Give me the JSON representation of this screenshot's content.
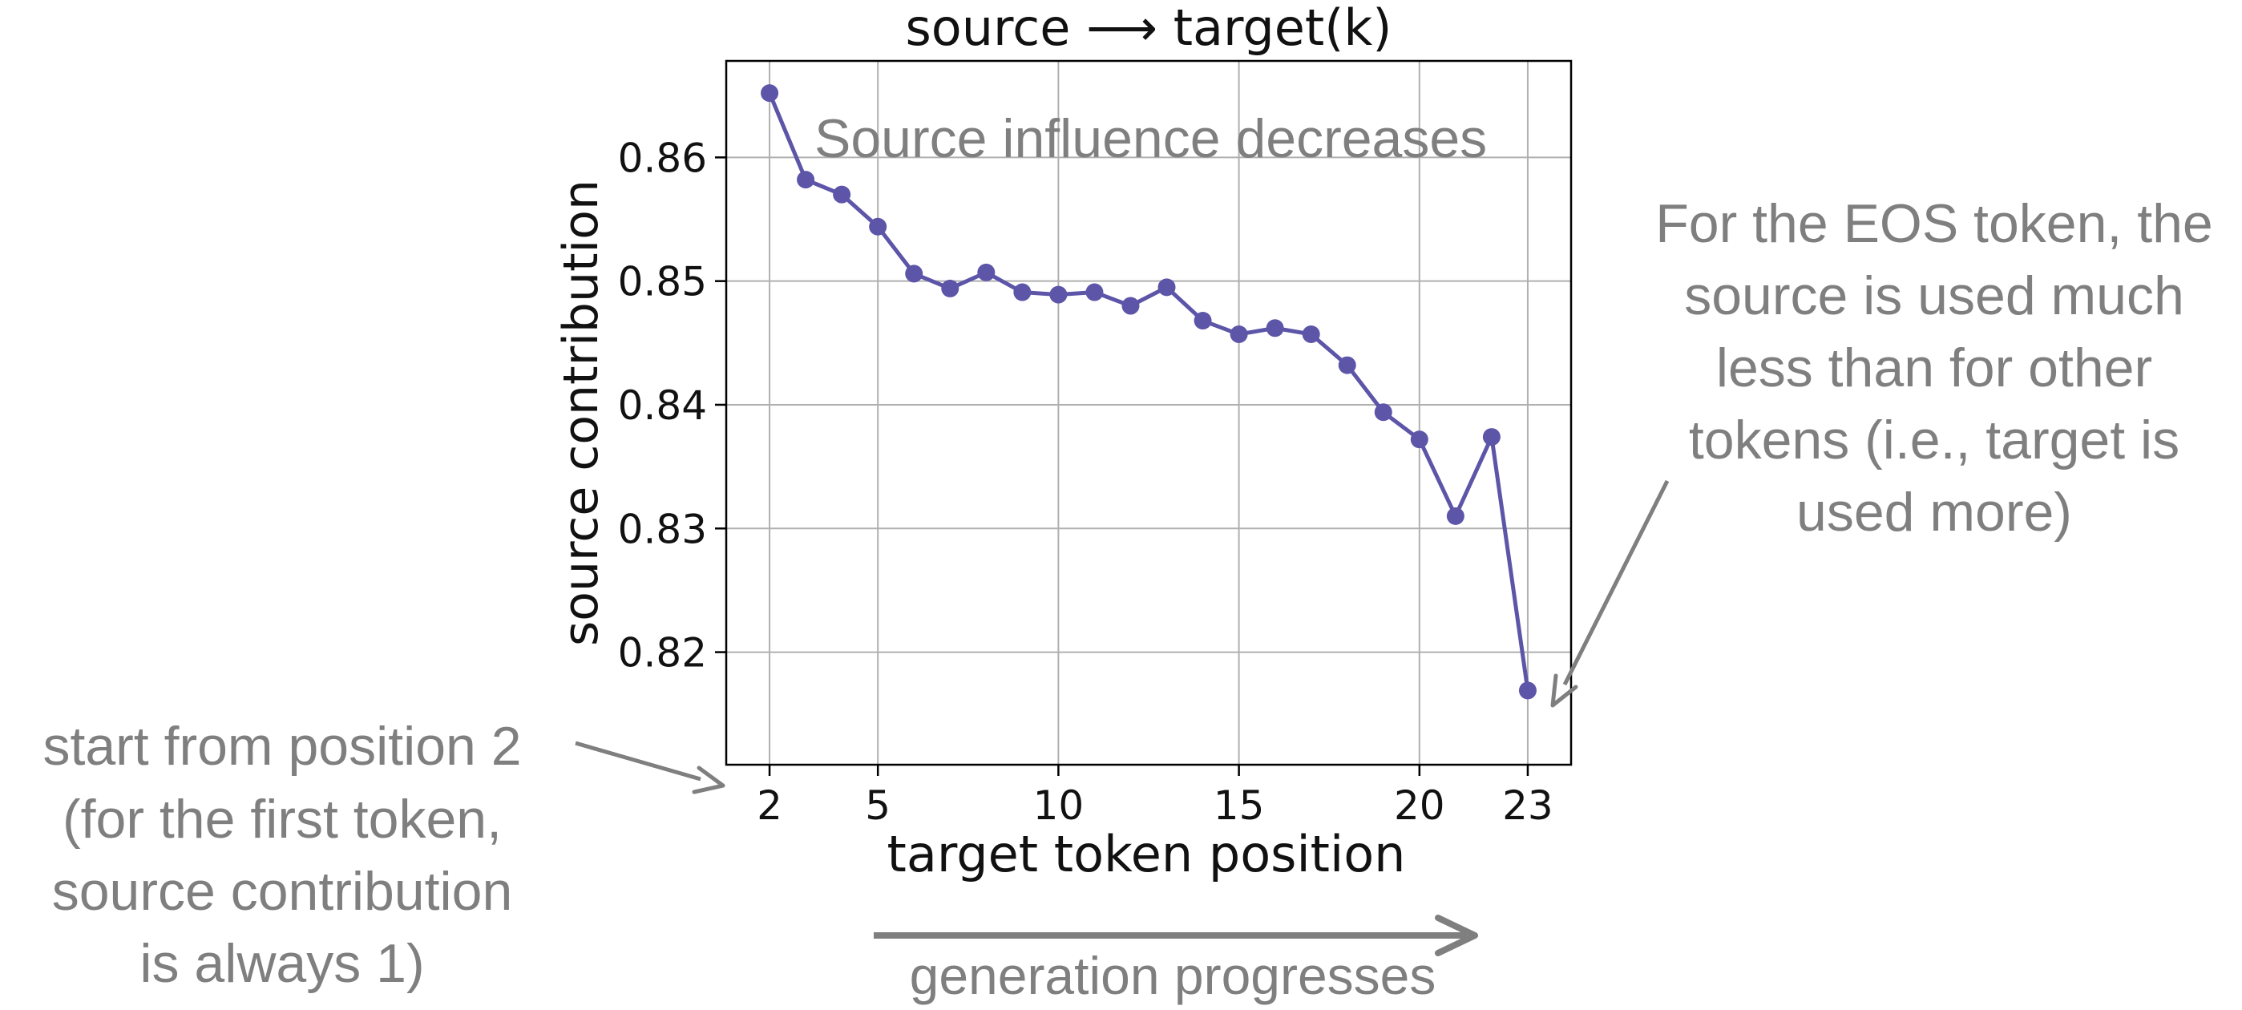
{
  "chart_data": {
    "type": "line",
    "title": "source ⟶ target(k)",
    "xlabel": "target token position",
    "ylabel": "source contribution",
    "x": [
      2,
      3,
      4,
      5,
      6,
      7,
      8,
      9,
      10,
      11,
      12,
      13,
      14,
      15,
      16,
      17,
      18,
      19,
      20,
      21,
      22,
      23
    ],
    "series": [
      {
        "values": [
          0.8652,
          0.8582,
          0.857,
          0.8544,
          0.8506,
          0.8494,
          0.8507,
          0.8491,
          0.8489,
          0.8491,
          0.848,
          0.8495,
          0.8468,
          0.8457,
          0.8462,
          0.8457,
          0.8432,
          0.8394,
          0.8372,
          0.831,
          0.8374,
          0.8169
        ],
        "color": "#5c55a8"
      }
    ],
    "xticks": [
      "2",
      "5",
      "10",
      "15",
      "20",
      "23"
    ],
    "yticks": [
      "0.82",
      "0.83",
      "0.84",
      "0.85",
      "0.86"
    ],
    "xlim": [
      0.8,
      24.2
    ],
    "ylim": [
      0.8109,
      0.8678
    ],
    "grid": true,
    "legend": "none"
  },
  "annotations": {
    "inside": "Source influence decreases",
    "eos_lines": [
      "For the EOS token, the",
      "source is used much",
      "less than for other",
      "tokens (i.e., target is",
      "used  more)"
    ],
    "start_lines": [
      "start from position 2",
      "(for the first token,",
      "source contribution",
      "is always 1)"
    ],
    "generation": "generation progresses",
    "color": "#7f7f7f"
  }
}
